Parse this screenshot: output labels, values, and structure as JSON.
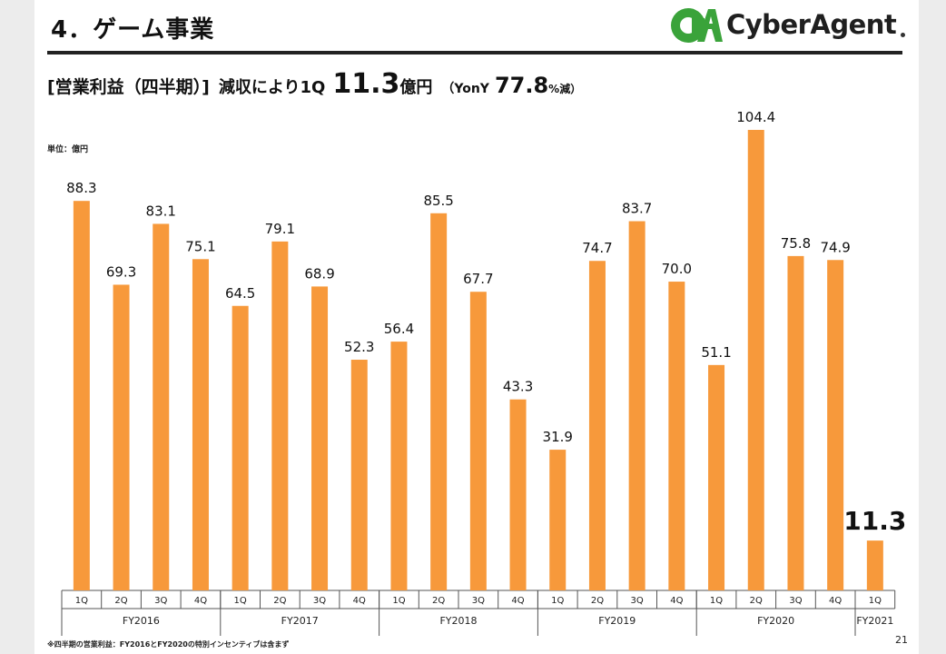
{
  "header": {
    "title": "4．ゲーム事業",
    "logo_text": "CyberAgent",
    "logo_mark_text": "CA"
  },
  "subtitle": {
    "part1": "[営業利益（四半期）]",
    "part2": "減収により1Q",
    "value": "11.3",
    "unit": "億円",
    "yoy_open": "（YonY",
    "yoy_value": "77.8",
    "yoy_close": "%減）"
  },
  "unit_label": "単位：億円",
  "footnote": "※四半期の営業利益：FY2016とFY2020の特別インセンティブは含まず",
  "page_number": "21",
  "colors": {
    "bar": "#f7993b",
    "logo_green": "#3aa33a",
    "axis": "#555555"
  },
  "chart_data": {
    "type": "bar",
    "unit": "億円",
    "groups": [
      {
        "label": "FY2016",
        "quarters": [
          "1Q",
          "2Q",
          "3Q",
          "4Q"
        ],
        "values": [
          88.3,
          69.3,
          83.1,
          75.1
        ]
      },
      {
        "label": "FY2017",
        "quarters": [
          "1Q",
          "2Q",
          "3Q",
          "4Q"
        ],
        "values": [
          64.5,
          79.1,
          68.9,
          52.3
        ]
      },
      {
        "label": "FY2018",
        "quarters": [
          "1Q",
          "2Q",
          "3Q",
          "4Q"
        ],
        "values": [
          56.4,
          85.5,
          67.7,
          43.3
        ]
      },
      {
        "label": "FY2019",
        "quarters": [
          "1Q",
          "2Q",
          "3Q",
          "4Q"
        ],
        "values": [
          31.9,
          74.7,
          83.7,
          70.0
        ]
      },
      {
        "label": "FY2020",
        "quarters": [
          "1Q",
          "2Q",
          "3Q",
          "4Q"
        ],
        "values": [
          51.1,
          104.4,
          75.8,
          74.9
        ]
      },
      {
        "label": "FY2021",
        "quarters": [
          "1Q"
        ],
        "values": [
          11.3
        ]
      }
    ],
    "value_labels": [
      [
        "88.3",
        "69.3",
        "83.1",
        "75.1"
      ],
      [
        "64.5",
        "79.1",
        "68.9",
        "52.3"
      ],
      [
        "56.4",
        "85.5",
        "67.7",
        "43.3"
      ],
      [
        "31.9",
        "74.7",
        "83.7",
        "70.0"
      ],
      [
        "51.1",
        "104.4",
        "75.8",
        "74.9"
      ],
      [
        "11.3"
      ]
    ],
    "highlight_last": true,
    "ylim": [
      0,
      104.4
    ],
    "grid": false,
    "legend": "none"
  }
}
